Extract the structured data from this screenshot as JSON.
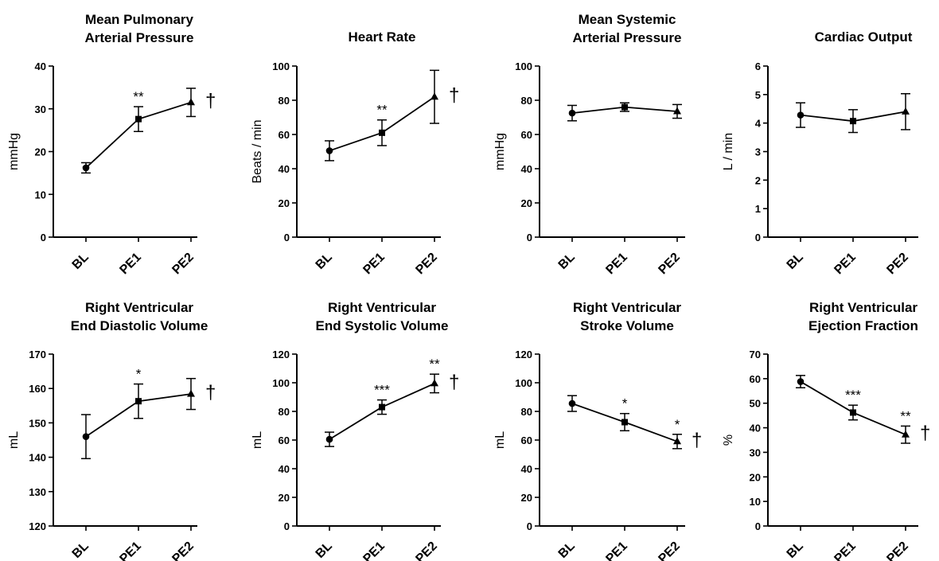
{
  "chart_data": [
    {
      "type": "line",
      "title": [
        "Mean Pulmonary",
        "Arterial Pressure"
      ],
      "ylabel": "mmHg",
      "ylim": [
        0,
        40
      ],
      "yticks": [
        0,
        10,
        20,
        30,
        40
      ],
      "categories": [
        "BL",
        "PE1",
        "PE2"
      ],
      "markers": [
        "circle",
        "square",
        "triangle"
      ],
      "values": [
        16.2,
        27.6,
        31.5
      ],
      "errors": [
        1.2,
        2.9,
        3.3
      ],
      "annotations": [
        "",
        "**",
        ""
      ],
      "dagger": "†"
    },
    {
      "type": "line",
      "title": [
        "Heart Rate"
      ],
      "ylabel": "Beats / min",
      "ylim": [
        0,
        100
      ],
      "yticks": [
        0,
        20,
        40,
        60,
        80,
        100
      ],
      "categories": [
        "BL",
        "PE1",
        "PE2"
      ],
      "markers": [
        "circle",
        "square",
        "triangle"
      ],
      "values": [
        50.5,
        61,
        82
      ],
      "errors": [
        5.8,
        7.5,
        15.5
      ],
      "annotations": [
        "",
        "**",
        ""
      ],
      "dagger": "†"
    },
    {
      "type": "line",
      "title": [
        "Mean Systemic",
        "Arterial Pressure"
      ],
      "ylabel": "mmHg",
      "ylim": [
        0,
        100
      ],
      "yticks": [
        0,
        20,
        40,
        60,
        80,
        100
      ],
      "categories": [
        "BL",
        "PE1",
        "PE2"
      ],
      "markers": [
        "circle",
        "square",
        "triangle"
      ],
      "values": [
        72.5,
        76,
        73.5
      ],
      "errors": [
        4.5,
        2.5,
        4.0
      ],
      "annotations": [
        "",
        "",
        ""
      ],
      "dagger": ""
    },
    {
      "type": "line",
      "title": [
        "Cardiac Output"
      ],
      "ylabel": "L / min",
      "ylim": [
        0,
        6
      ],
      "yticks": [
        0,
        1,
        2,
        3,
        4,
        5,
        6
      ],
      "categories": [
        "BL",
        "PE1",
        "PE2"
      ],
      "markers": [
        "circle",
        "square",
        "triangle"
      ],
      "values": [
        4.28,
        4.07,
        4.4
      ],
      "errors": [
        0.43,
        0.4,
        0.63
      ],
      "annotations": [
        "",
        "",
        ""
      ],
      "dagger": ""
    },
    {
      "type": "line",
      "title": [
        "Right Ventricular",
        "End Diastolic Volume"
      ],
      "ylabel": "mL",
      "ylim": [
        120,
        170
      ],
      "yticks": [
        120,
        130,
        140,
        150,
        160,
        170
      ],
      "categories": [
        "BL",
        "PE1",
        "PE2"
      ],
      "markers": [
        "circle",
        "square",
        "triangle"
      ],
      "values": [
        146,
        156.3,
        158.4
      ],
      "errors": [
        6.4,
        5.0,
        4.5
      ],
      "annotations": [
        "",
        "*",
        ""
      ],
      "dagger": "†"
    },
    {
      "type": "line",
      "title": [
        "Right Ventricular",
        "End Systolic Volume"
      ],
      "ylabel": "mL",
      "ylim": [
        0,
        120
      ],
      "yticks": [
        0,
        20,
        40,
        60,
        80,
        100,
        120
      ],
      "categories": [
        "BL",
        "PE1",
        "PE2"
      ],
      "markers": [
        "circle",
        "square",
        "triangle"
      ],
      "values": [
        60.5,
        83,
        99.5
      ],
      "errors": [
        5.0,
        5.0,
        6.5
      ],
      "annotations": [
        "",
        "***",
        "**"
      ],
      "dagger": "†"
    },
    {
      "type": "line",
      "title": [
        "Right Ventricular",
        "Stroke Volume"
      ],
      "ylabel": "mL",
      "ylim": [
        0,
        120
      ],
      "yticks": [
        0,
        20,
        40,
        60,
        80,
        100,
        120
      ],
      "categories": [
        "BL",
        "PE1",
        "PE2"
      ],
      "markers": [
        "circle",
        "square",
        "triangle"
      ],
      "values": [
        85.5,
        72.5,
        59
      ],
      "errors": [
        5.5,
        6.0,
        5.0
      ],
      "annotations": [
        "",
        "*",
        "*"
      ],
      "dagger": "†"
    },
    {
      "type": "line",
      "title": [
        "Right Ventricular",
        "Ejection Fraction"
      ],
      "ylabel": "%",
      "ylim": [
        0,
        70
      ],
      "yticks": [
        0,
        10,
        20,
        30,
        40,
        50,
        60,
        70
      ],
      "categories": [
        "BL",
        "PE1",
        "PE2"
      ],
      "markers": [
        "circle",
        "square",
        "triangle"
      ],
      "values": [
        58.8,
        46.2,
        37.2
      ],
      "errors": [
        2.5,
        3.0,
        3.5
      ],
      "annotations": [
        "",
        "***",
        "**"
      ],
      "dagger": "†"
    }
  ]
}
